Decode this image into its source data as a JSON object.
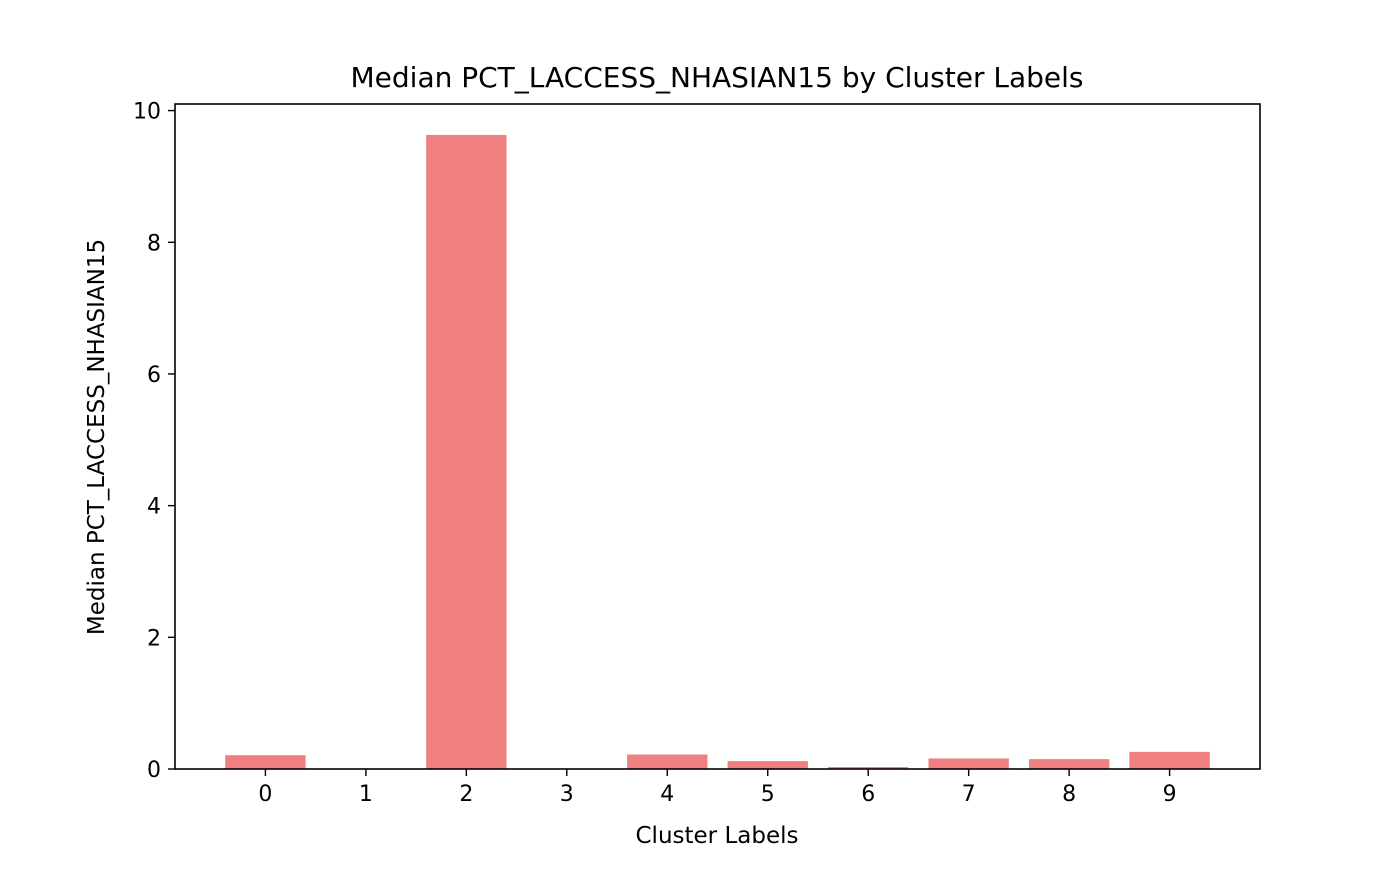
{
  "chart_data": {
    "type": "bar",
    "title": "Median PCT_LACCESS_NHASIAN15 by Cluster Labels",
    "xlabel": "Cluster Labels",
    "ylabel": "Median PCT_LACCESS_NHASIAN15",
    "categories": [
      "0",
      "1",
      "2",
      "3",
      "4",
      "5",
      "6",
      "7",
      "8",
      "9"
    ],
    "values": [
      0.21,
      0.0,
      9.63,
      0.0,
      0.22,
      0.12,
      0.03,
      0.16,
      0.15,
      0.26
    ],
    "ylim": [
      0,
      10.1
    ],
    "yticks": [
      0,
      2,
      4,
      6,
      8,
      10
    ],
    "bar_color": "#f08080",
    "grid": false,
    "legend": "none"
  }
}
